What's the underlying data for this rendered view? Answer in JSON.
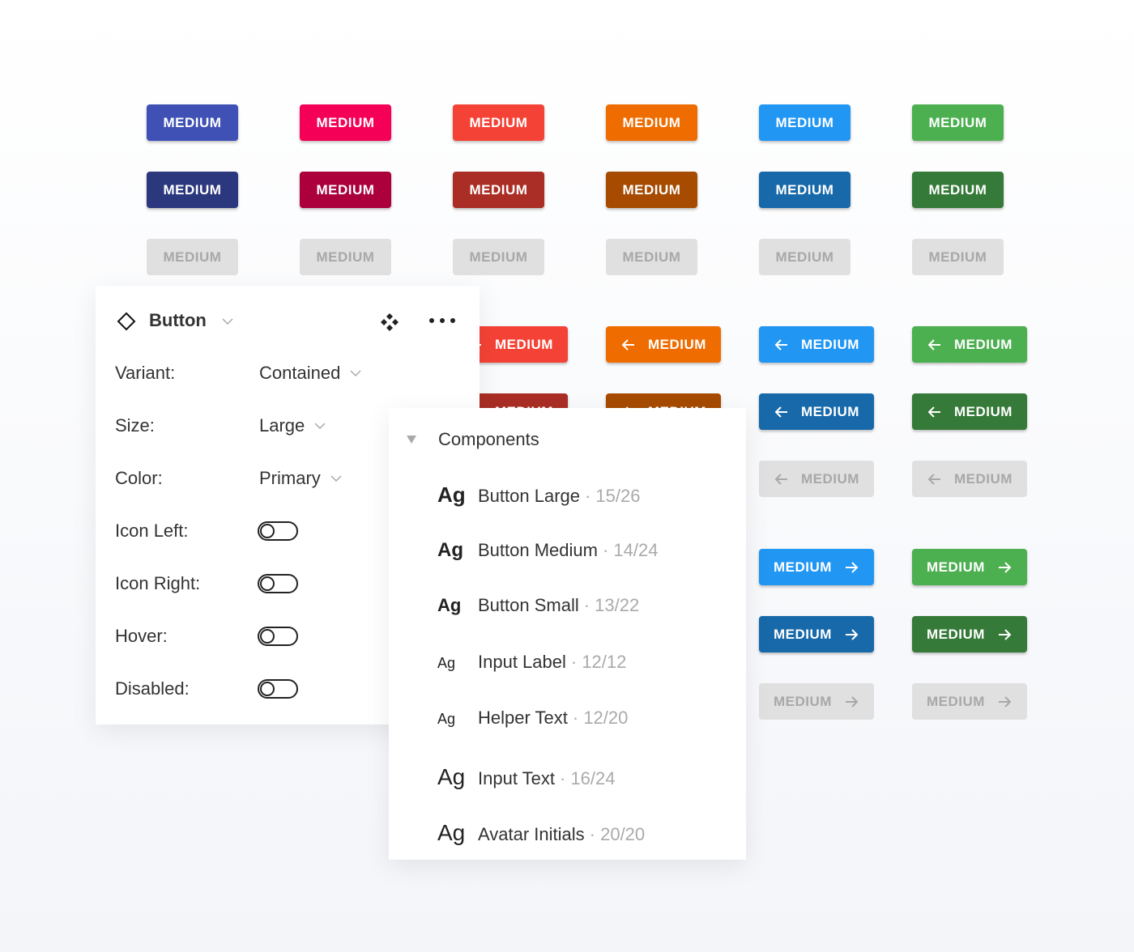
{
  "button_label": "MEDIUM",
  "colors": {
    "main": [
      "#3f51b5",
      "#f50057",
      "#f44336",
      "#ef6c00",
      "#2196f3",
      "#4caf50"
    ],
    "dark": [
      "#2c387e",
      "#ab003c",
      "#aa2e25",
      "#a64b00",
      "#1769aa",
      "#357a38"
    ],
    "disabled_bg": "#e0e0e0",
    "disabled_text": "#a8a8a8"
  },
  "props_panel": {
    "title": "Button",
    "rows": [
      {
        "label": "Variant:",
        "value": "Contained"
      },
      {
        "label": "Size:",
        "value": "Large"
      },
      {
        "label": "Color:",
        "value": "Primary"
      }
    ],
    "toggles": [
      {
        "label": "Icon Left:",
        "on": false
      },
      {
        "label": "Icon Right:",
        "on": false
      },
      {
        "label": "Hover:",
        "on": false
      },
      {
        "label": "Disabled:",
        "on": false
      }
    ]
  },
  "components_panel": {
    "title": "Components",
    "items": [
      {
        "sample": "Ag",
        "name": "Button Large",
        "meta": "· 15/26"
      },
      {
        "sample": "Ag",
        "name": "Button Medium",
        "meta": "· 14/24"
      },
      {
        "sample": "Ag",
        "name": "Button Small",
        "meta": "· 13/22"
      },
      {
        "sample": "Ag",
        "name": "Input Label",
        "meta": "· 12/12"
      },
      {
        "sample": "Ag",
        "name": "Helper Text",
        "meta": "· 12/20"
      },
      {
        "sample": "Ag",
        "name": "Input Text",
        "meta": "· 16/24"
      },
      {
        "sample": "Ag",
        "name": "Avatar Initials",
        "meta": "· 20/20"
      }
    ]
  }
}
